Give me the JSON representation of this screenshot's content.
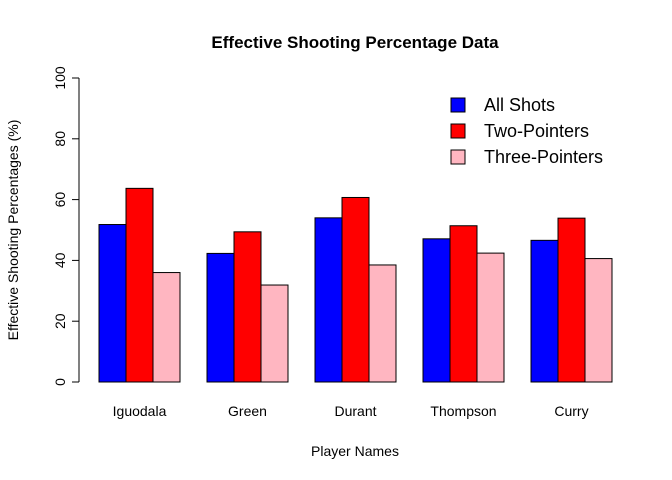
{
  "chart_data": {
    "type": "bar",
    "title": "Effective Shooting Percentage Data",
    "xlabel": "Player Names",
    "ylabel": "Effective Shooting Percentages (%)",
    "ylim": [
      0,
      100
    ],
    "yticks": [
      0,
      20,
      40,
      60,
      80,
      100
    ],
    "categories": [
      "Iguodala",
      "Green",
      "Durant",
      "Thompson",
      "Curry"
    ],
    "series": [
      {
        "name": "All Shots",
        "color": "#0000ff",
        "values": [
          51.8,
          42.3,
          54.0,
          47.1,
          46.6
        ]
      },
      {
        "name": "Two-Pointers",
        "color": "#ff0000",
        "values": [
          63.7,
          49.4,
          60.7,
          51.4,
          53.9
        ]
      },
      {
        "name": "Three-Pointers",
        "color": "#ffb6c1",
        "values": [
          36.0,
          31.9,
          38.5,
          42.4,
          40.6
        ]
      }
    ],
    "legend_position": "top-right",
    "grid": false
  }
}
